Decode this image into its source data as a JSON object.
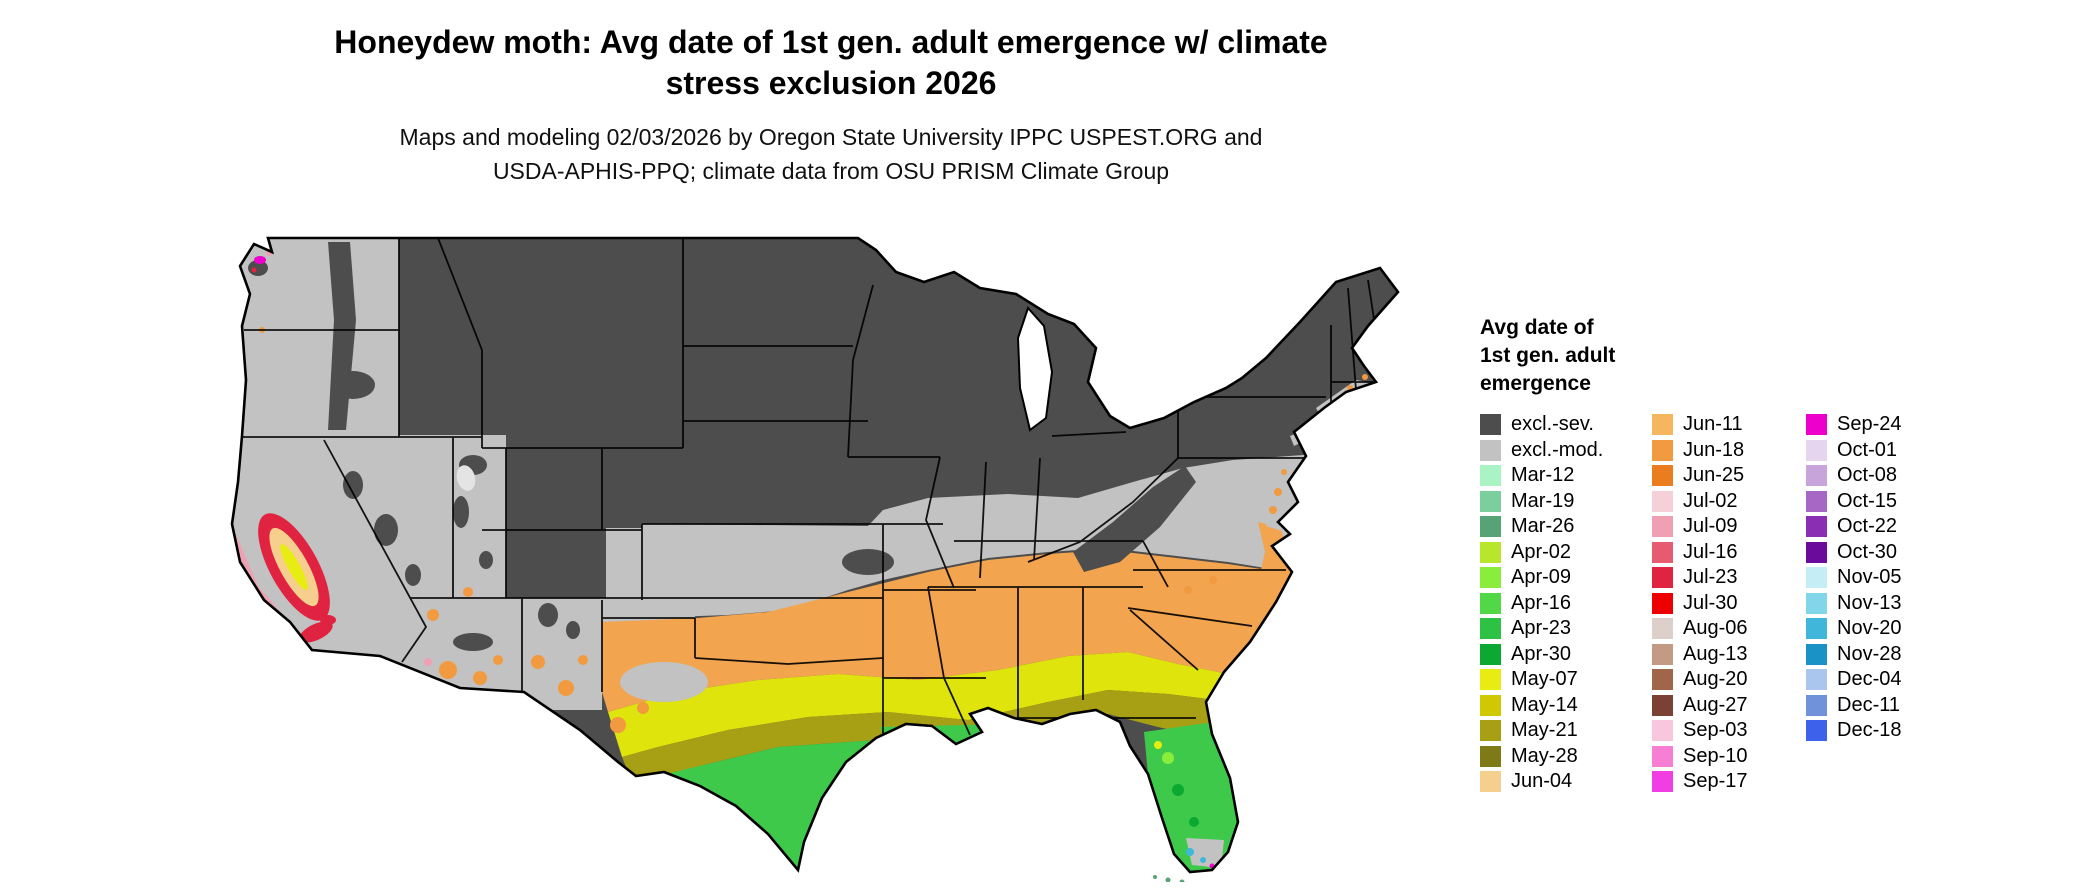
{
  "header": {
    "title_line1": "Honeydew moth: Avg date of 1st gen. adult emergence w/ climate",
    "title_line2": "stress exclusion 2026",
    "subtitle_line1": "Maps and modeling 02/03/2026 by Oregon State University IPPC USPEST.ORG and",
    "subtitle_line2": "USDA-APHIS-PPQ; climate data from OSU PRISM Climate Group"
  },
  "legend": {
    "title_lines": [
      "Avg date of",
      "1st gen. adult",
      "emergence"
    ],
    "columns": [
      {
        "items": [
          {
            "label": "excl.-sev.",
            "color": "#4d4d4d"
          },
          {
            "label": "excl.-mod.",
            "color": "#c2c2c2"
          },
          {
            "label": "Mar-12",
            "color": "#a9f3c5"
          },
          {
            "label": "Mar-19",
            "color": "#7bcf9d"
          },
          {
            "label": "Mar-26",
            "color": "#58a376"
          },
          {
            "label": "Apr-02",
            "color": "#b8e62c"
          },
          {
            "label": "Apr-09",
            "color": "#8aed3c"
          },
          {
            "label": "Apr-16",
            "color": "#52d747"
          },
          {
            "label": "Apr-23",
            "color": "#2dc243"
          },
          {
            "label": "Apr-30",
            "color": "#0ba832"
          },
          {
            "label": "May-07",
            "color": "#e7ec12"
          },
          {
            "label": "May-14",
            "color": "#cfc802"
          },
          {
            "label": "May-21",
            "color": "#a7a015"
          },
          {
            "label": "May-28",
            "color": "#7e7a17"
          },
          {
            "label": "Jun-04",
            "color": "#f6cf8f"
          }
        ]
      },
      {
        "items": [
          {
            "label": "Jun-11",
            "color": "#f6b660"
          },
          {
            "label": "Jun-18",
            "color": "#f19a40"
          },
          {
            "label": "Jun-25",
            "color": "#e97d20"
          },
          {
            "label": "Jul-02",
            "color": "#f6d0d9"
          },
          {
            "label": "Jul-09",
            "color": "#efa0b2"
          },
          {
            "label": "Jul-16",
            "color": "#e75b70"
          },
          {
            "label": "Jul-23",
            "color": "#df2340"
          },
          {
            "label": "Jul-30",
            "color": "#ef0000"
          },
          {
            "label": "Aug-06",
            "color": "#ddcfca"
          },
          {
            "label": "Aug-13",
            "color": "#c39a84"
          },
          {
            "label": "Aug-20",
            "color": "#a1664a"
          },
          {
            "label": "Aug-27",
            "color": "#7a4134"
          },
          {
            "label": "Sep-03",
            "color": "#f8c6dd"
          },
          {
            "label": "Sep-10",
            "color": "#f67ed3"
          },
          {
            "label": "Sep-17",
            "color": "#f13ee2"
          }
        ]
      },
      {
        "items": [
          {
            "label": "Sep-24",
            "color": "#ed00cb"
          },
          {
            "label": "Oct-01",
            "color": "#e5d5ef"
          },
          {
            "label": "Oct-08",
            "color": "#c7a4da"
          },
          {
            "label": "Oct-15",
            "color": "#a667c5"
          },
          {
            "label": "Oct-22",
            "color": "#8a2eb4"
          },
          {
            "label": "Oct-30",
            "color": "#6b0b9b"
          },
          {
            "label": "Nov-05",
            "color": "#c4edf5"
          },
          {
            "label": "Nov-13",
            "color": "#83d5e9"
          },
          {
            "label": "Nov-20",
            "color": "#40b6da"
          },
          {
            "label": "Nov-28",
            "color": "#1b92c5"
          },
          {
            "label": "Dec-04",
            "color": "#aac6ee"
          },
          {
            "label": "Dec-11",
            "color": "#7092db"
          },
          {
            "label": "Dec-18",
            "color": "#3d61eb"
          }
        ]
      }
    ]
  },
  "map": {
    "background": "#ffffff",
    "excluded_severe": "#4d4d4d",
    "excluded_moderate": "#c2c2c2",
    "state_border": "#000000",
    "water": "#ffffff"
  }
}
